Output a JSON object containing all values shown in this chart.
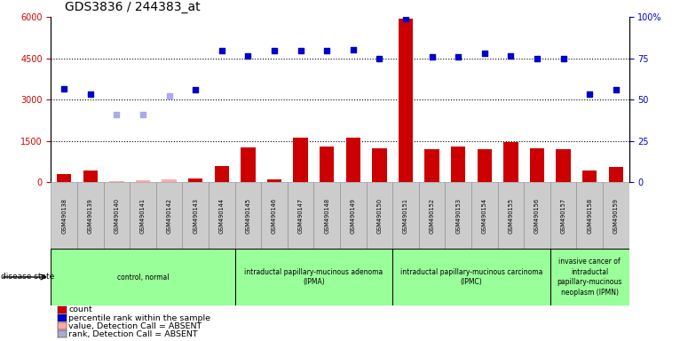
{
  "title": "GDS3836 / 244383_at",
  "samples": [
    "GSM490138",
    "GSM490139",
    "GSM490140",
    "GSM490141",
    "GSM490142",
    "GSM490143",
    "GSM490144",
    "GSM490145",
    "GSM490146",
    "GSM490147",
    "GSM490148",
    "GSM490149",
    "GSM490150",
    "GSM490151",
    "GSM490152",
    "GSM490153",
    "GSM490154",
    "GSM490155",
    "GSM490156",
    "GSM490157",
    "GSM490158",
    "GSM490159"
  ],
  "counts": [
    300,
    420,
    50,
    80,
    100,
    150,
    580,
    1280,
    100,
    1620,
    1300,
    1620,
    1250,
    5950,
    1200,
    1300,
    1200,
    1450,
    1250,
    1200,
    430,
    550
  ],
  "percentile_ranks": [
    3400,
    3200,
    2450,
    2450,
    3150,
    3380,
    4780,
    4600,
    4780,
    4780,
    4780,
    4800,
    4500,
    5950,
    4550,
    4550,
    4680,
    4600,
    4500,
    4480,
    3200,
    3350
  ],
  "absent_mask": [
    false,
    false,
    true,
    true,
    true,
    false,
    false,
    false,
    false,
    false,
    false,
    false,
    false,
    false,
    false,
    false,
    false,
    false,
    false,
    false,
    false,
    false
  ],
  "count_color": "#cc0000",
  "count_absent_color": "#ffaaaa",
  "rank_color": "#0000cc",
  "rank_absent_color": "#aaaaee",
  "ylim_left": [
    0,
    6000
  ],
  "ylim_right": [
    0,
    100
  ],
  "yticks_left": [
    0,
    1500,
    3000,
    4500,
    6000
  ],
  "yticks_right": [
    0,
    25,
    50,
    75,
    100
  ],
  "groups": [
    {
      "label": "control, normal",
      "start": 0,
      "end": 6
    },
    {
      "label": "intraductal papillary-mucinous adenoma\n(IPMA)",
      "start": 7,
      "end": 12
    },
    {
      "label": "intraductal papillary-mucinous carcinoma\n(IPMC)",
      "start": 13,
      "end": 18
    },
    {
      "label": "invasive cancer of\nintraductal\npapillary-mucinous\nneoplasm (IPMN)",
      "start": 19,
      "end": 21
    }
  ],
  "group_color": "#99ff99",
  "sample_box_color": "#cccccc",
  "legend_items": [
    {
      "label": "count",
      "color": "#cc0000"
    },
    {
      "label": "percentile rank within the sample",
      "color": "#0000cc"
    },
    {
      "label": "value, Detection Call = ABSENT",
      "color": "#ffaaaa"
    },
    {
      "label": "rank, Detection Call = ABSENT",
      "color": "#aaaacc"
    }
  ]
}
